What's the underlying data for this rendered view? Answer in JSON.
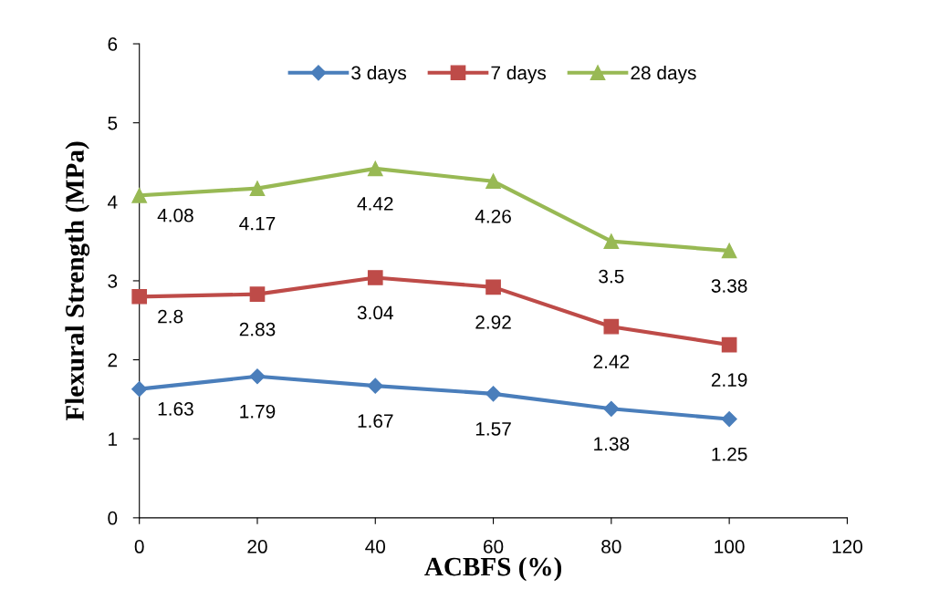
{
  "chart_data": {
    "type": "line",
    "xlabel": "ACBFS (%)",
    "ylabel": "Flexural Strength (MPa)",
    "x": [
      0,
      20,
      40,
      60,
      80,
      100
    ],
    "series": [
      {
        "name": "3 days",
        "color": "#4a7ebb",
        "marker": "diamond",
        "values": [
          1.63,
          1.79,
          1.67,
          1.57,
          1.38,
          1.25
        ]
      },
      {
        "name": "7 days",
        "color": "#be4b48",
        "marker": "square",
        "values": [
          2.8,
          2.83,
          3.04,
          2.92,
          2.42,
          2.19
        ]
      },
      {
        "name": "28 days",
        "color": "#98b954",
        "marker": "triangle",
        "values": [
          4.08,
          4.17,
          4.42,
          4.26,
          3.5,
          3.38
        ]
      }
    ],
    "xlim": [
      0,
      120
    ],
    "xticks": [
      0,
      20,
      40,
      60,
      80,
      100,
      120
    ],
    "ylim": [
      0,
      6
    ],
    "yticks": [
      0,
      1,
      2,
      3,
      4,
      5,
      6
    ],
    "grid": false,
    "legend": "top",
    "data_labels": true,
    "line_style": "solid"
  }
}
